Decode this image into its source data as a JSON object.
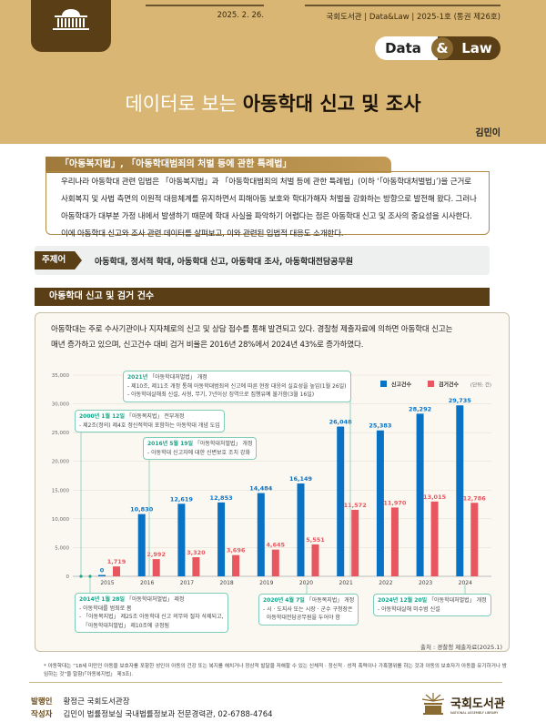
{
  "header": {
    "date": "2025. 2. 26.",
    "masthead": "국회도서관 | Data&Law | 2025-1호 (통권 제26호)",
    "series": {
      "data": "Data",
      "amp": "&",
      "law": "Law"
    },
    "title_light": "데이터로 보는",
    "title_bold": "아동학대 신고 및 조사",
    "author": "김민이",
    "icon": "assembly-building-icon"
  },
  "section1": {
    "tab": "「아동복지법」, 「아동학대범죄의 처벌 등에 관한 특례법」",
    "lines": [
      "우리나라 아동학대 관련 입법은 「아동복지법」과 「아동학대범죄의 처벌 등에 관한 특례법」(이하 ‘「아동학대처벌법」’)을 근거로",
      "사회복지 및 사법 측면의 이원적 대응체계를 유지하면서 피해아동 보호와 학대가해자 처벌을 강화하는 방향으로 발전해 왔다. 그러나",
      "아동학대가 대부분 가정 내에서 발생하기 때문에 학대 사실을 파악하기 어렵다는 점은 아동학대 신고 및 조사의 중요성을 시사한다.",
      "이에 아동학대 신고와 조사 관련 데이터를 살펴보고, 이와 관련된 입법적 대응도 소개한다."
    ]
  },
  "keywords": {
    "label": "주제어",
    "text": "아동학대, 정서적 학대, 아동학대 신고, 아동학대 조사, 아동학대전담공무원"
  },
  "section2": {
    "title": "아동학대 신고 및 검거 건수",
    "intro": [
      "아동학대는 주로 수사기관이나 지자체로의 신고 및 상담 접수를 통해 발견되고 있다. 경찰청 제출자료에 의하면 아동학대 신고는",
      "매년 증가하고 있으며, 신고건수 대비 검거 비율은 2016년 28%에서 2024년 43%로 증가하였다."
    ],
    "source": "출처 : 경찰청 제출자료(2025.1)"
  },
  "chart_data": {
    "type": "bar",
    "categories": [
      "2015",
      "2016",
      "2017",
      "2018",
      "2019",
      "2020",
      "2021",
      "2022",
      "2023",
      "2024"
    ],
    "series": [
      {
        "name": "신고건수",
        "color": "#0a72c4",
        "values": [
          0,
          10830,
          12619,
          12853,
          14484,
          16149,
          26048,
          25383,
          28292,
          29735
        ],
        "labels": [
          "0",
          "10,830",
          "12,619",
          "12,853",
          "14,484",
          "16,149",
          "26,048",
          "25,383",
          "28,292",
          "29,735"
        ]
      },
      {
        "name": "검거건수",
        "color": "#e8565f",
        "values": [
          1719,
          2992,
          3320,
          3696,
          4645,
          5551,
          11572,
          11970,
          13015,
          12786
        ],
        "labels": [
          "1,719",
          "2,992",
          "3,320",
          "3,696",
          "4,645",
          "5,551",
          "11,572",
          "11,970",
          "13,015",
          "12,786"
        ]
      }
    ],
    "ylim": [
      0,
      35000
    ],
    "yticks": [
      "0",
      "5,000",
      "10,000",
      "15,000",
      "20,000",
      "25,000",
      "30,000",
      "35,000"
    ],
    "unit": "(단위: 건)",
    "grid": true,
    "legend": "top-right",
    "annotations": [
      {
        "head": "2021년",
        "law": "「아동학대처벌법」 개정",
        "lines": [
          "- 제10조, 제11조 개정 통해 아동학대범죄의 신고에 따른 현장 대응의 실효성을 높임(1월 26일)",
          "- 아동학대살해죄 신설, 사형, 무기, 7년이상 징역으로 집행유예 불가함(3월 16일)"
        ]
      },
      {
        "head": "2000년 1월 12일",
        "law": "「아동복지법」 전부개정",
        "lines": [
          "- 제2조(정의) 제4호 정신적학대 포함하는 아동학대 개념 도입"
        ]
      },
      {
        "head": "2016년 5월 19일",
        "law": "「아동학대처벌법」 개정",
        "lines": [
          "- 아동학대 신고자에 대한 신변보호 조치 강화"
        ]
      },
      {
        "head": "2014년 1월 28일",
        "law": "「아동학대처벌법」 제정",
        "lines": [
          "- 아동학대를 범죄로 봄",
          "- 「아동복지법」 제25조 아동학대 신고 의무와 절차 삭제되고,",
          "  「아동학대처벌법」 제10조에 규정됨"
        ]
      },
      {
        "head": "2020년 4월 7일",
        "law": "「아동복지법」 개정",
        "lines": [
          "- 시 · 도지사 또는 시장 · 군수 구청장은",
          "  아동학대전담공무원을 두어야 함"
        ]
      },
      {
        "head": "2024년 12월 20일",
        "law": "「아동학대처벌법」 개정",
        "lines": [
          "- 아동학대살해 미수범 신설"
        ]
      }
    ]
  },
  "footnote": "* 아동학대는 “18세 미만인 아동을 보호자를 포함한 성인이 아동의 건강 또는 복지를 해치거나 정상적 발달을 저해할 수 있는 신체적 · 정신적 · 성적 폭력이나 가혹행위를 하는 것과 아동의 보호자가 아동을 유기하거나 방임하는 것”을 말함(「아동복지법」 제3조).",
  "footer": {
    "publisher_label": "발행인",
    "publisher": "황정근 국회도서관장",
    "author_label": "작성자",
    "author": "김민이 법률정보실 국내법률정보과 전문경력관, 02-6788-4764",
    "logo_ko": "국회도서관",
    "logo_en": "NATIONAL ASSEMBLY LIBRARY"
  }
}
